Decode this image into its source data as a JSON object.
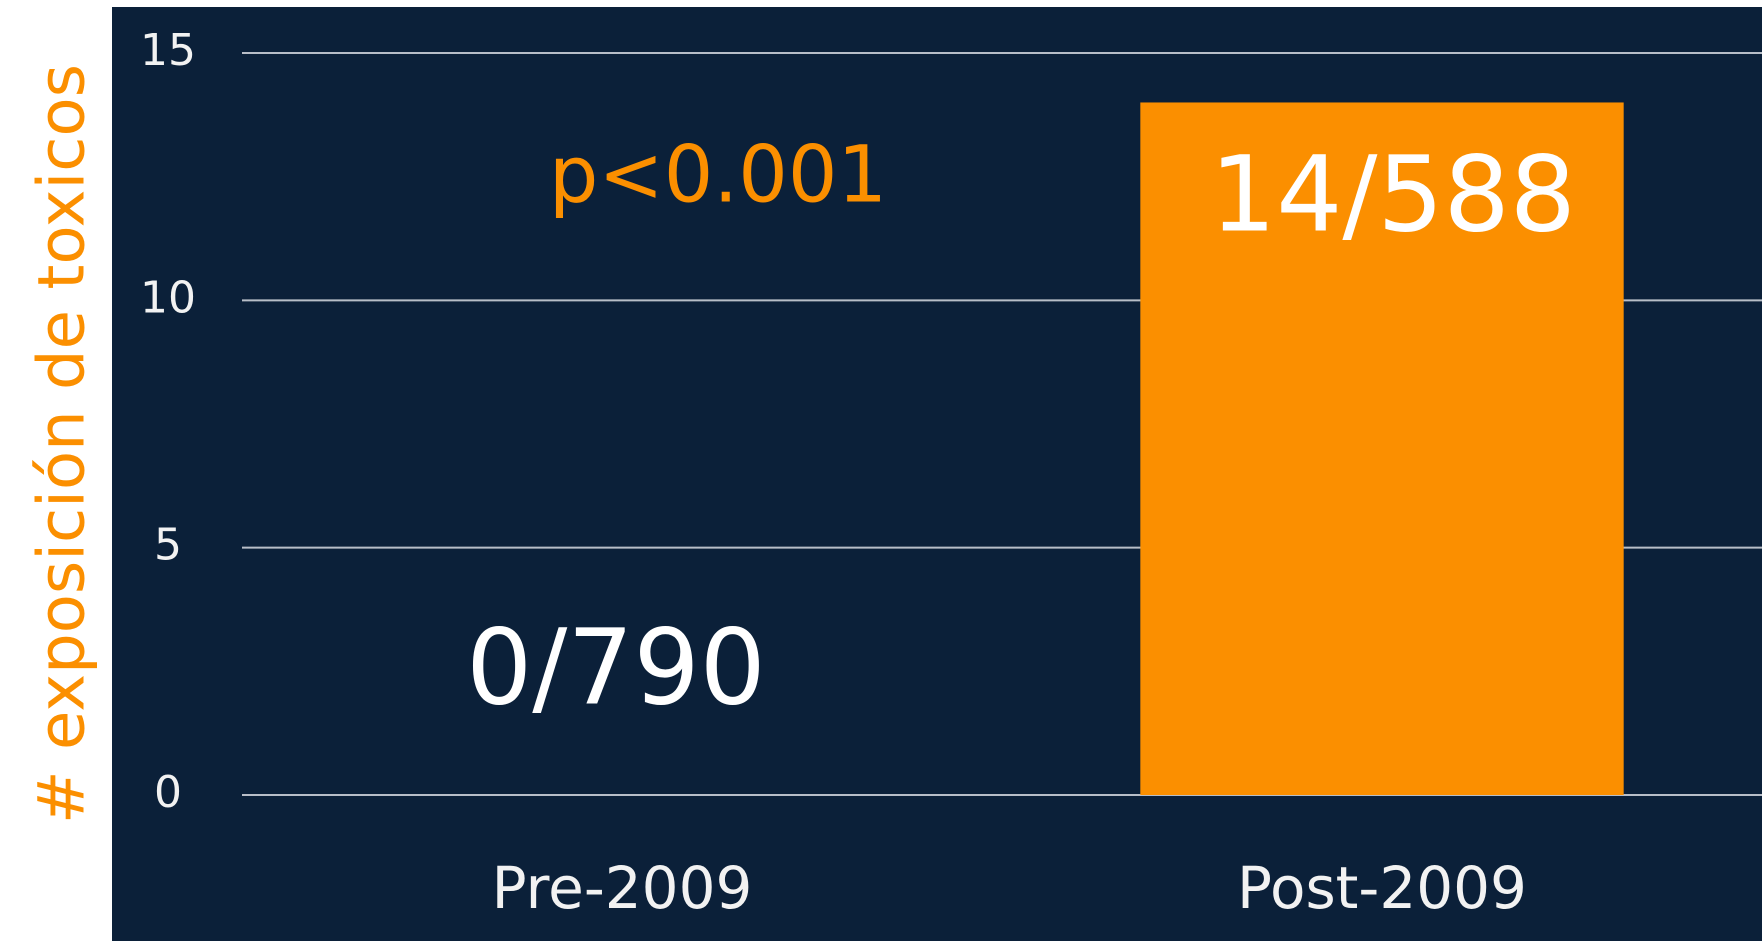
{
  "chart_data": {
    "type": "bar",
    "y_label": "# exposición de toxicos",
    "categories": [
      "Pre-2009",
      "Post-2009"
    ],
    "values": [
      0,
      14
    ],
    "value_labels": [
      "0/790",
      "14/588"
    ],
    "color": "#fb8f00",
    "annotation": "p<0.001",
    "ylim": [
      0,
      15
    ],
    "yticks": [
      0,
      5,
      10,
      15
    ],
    "grid": true
  }
}
